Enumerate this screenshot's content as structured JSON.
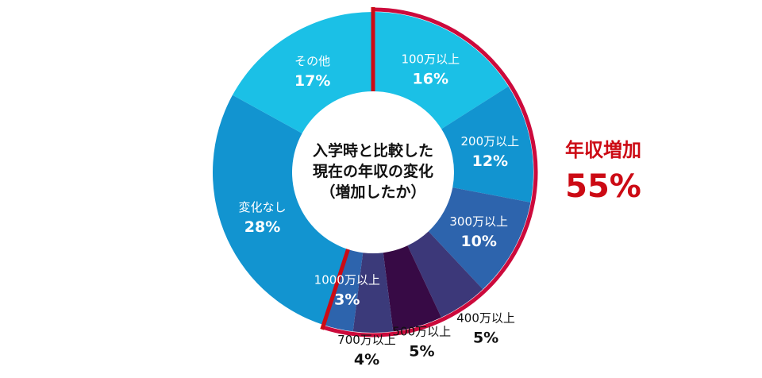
{
  "chart_data": {
    "type": "pie",
    "donut": true,
    "center_title": [
      "入学時と比較した",
      "現在の年収の変化",
      "（増加したか）"
    ],
    "slices": [
      {
        "label": "100万以上",
        "value": 16,
        "display": "16%",
        "color": "#1bc0e6",
        "text_color": "#ffffff"
      },
      {
        "label": "200万以上",
        "value": 12,
        "display": "12%",
        "color": "#1294d0",
        "text_color": "#ffffff"
      },
      {
        "label": "300万以上",
        "value": 10,
        "display": "10%",
        "color": "#2d64ad",
        "text_color": "#ffffff"
      },
      {
        "label": "400万以上",
        "value": 5,
        "display": "5%",
        "color": "#3c3879",
        "text_color": "#111111"
      },
      {
        "label": "500万以上",
        "value": 5,
        "display": "5%",
        "color": "#370a45",
        "text_color": "#111111"
      },
      {
        "label": "700万以上",
        "value": 4,
        "display": "4%",
        "color": "#3b3a7a",
        "text_color": "#111111"
      },
      {
        "label": "1000万以上",
        "value": 3,
        "display": "3%",
        "color": "#2d64ad",
        "text_color": "#ffffff"
      },
      {
        "label": "変化なし",
        "value": 28,
        "display": "28%",
        "color": "#1294d0",
        "text_color": "#ffffff"
      },
      {
        "label": "その他",
        "value": 17,
        "display": "17%",
        "color": "#1bc0e6",
        "text_color": "#ffffff"
      }
    ],
    "highlight": {
      "label": "年収増加",
      "value": 55,
      "display": "55%",
      "color": "#cc0a3c",
      "text_color": "#cc0a14"
    }
  }
}
